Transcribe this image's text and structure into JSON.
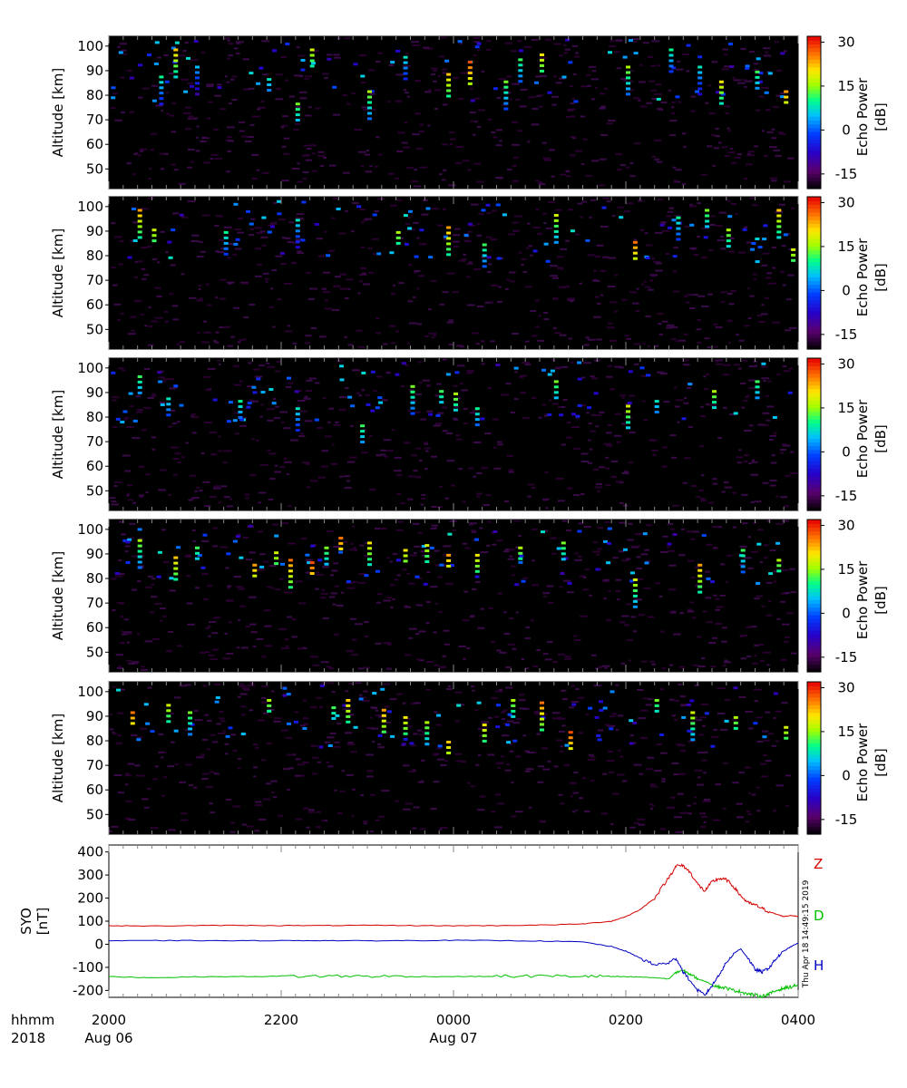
{
  "chart_data": [
    {
      "type": "heatmap",
      "ylabel": "Altitude [km]",
      "yticks": [
        50,
        60,
        70,
        80,
        90,
        100
      ],
      "ylim": [
        42,
        104
      ],
      "xlim": [
        "2018-08-06 20:00",
        "2018-08-07 04:00"
      ],
      "colorbar": {
        "label": "Echo Power [dB]",
        "ticks": [
          -15,
          0,
          15,
          30
        ],
        "range": [
          -20,
          32
        ]
      },
      "echoes": [
        [
          "20:45",
          99,
          22
        ],
        [
          "20:35",
          88,
          10
        ],
        [
          "21:00",
          92,
          5
        ],
        [
          "21:50",
          87,
          8
        ],
        [
          "22:10",
          77,
          14
        ],
        [
          "22:20",
          99,
          18
        ],
        [
          "23:00",
          82,
          16
        ],
        [
          "23:25",
          96,
          8
        ],
        [
          "23:55",
          89,
          22
        ],
        [
          "00:10",
          94,
          28
        ],
        [
          "00:35",
          86,
          14
        ],
        [
          "00:45",
          95,
          12
        ],
        [
          "01:00",
          97,
          20
        ],
        [
          "02:00",
          92,
          16
        ],
        [
          "02:30",
          99,
          10
        ],
        [
          "02:50",
          92,
          8
        ],
        [
          "03:05",
          86,
          20
        ],
        [
          "03:30",
          90,
          12
        ],
        [
          "03:50",
          82,
          24
        ]
      ]
    },
    {
      "type": "heatmap",
      "ylabel": "Altitude [km]",
      "yticks": [
        50,
        60,
        70,
        80,
        90,
        100
      ],
      "ylim": [
        42,
        104
      ],
      "xlim": [
        "2018-08-06 20:00",
        "2018-08-07 04:00"
      ],
      "colorbar": {
        "label": "Echo Power [dB]",
        "ticks": [
          -15,
          0,
          15,
          30
        ],
        "range": [
          -20,
          32
        ]
      },
      "echoes": [
        [
          "20:20",
          99,
          24
        ],
        [
          "20:30",
          91,
          18
        ],
        [
          "21:20",
          90,
          10
        ],
        [
          "22:10",
          95,
          8
        ],
        [
          "23:20",
          90,
          16
        ],
        [
          "23:55",
          92,
          24
        ],
        [
          "00:20",
          85,
          12
        ],
        [
          "01:10",
          97,
          18
        ],
        [
          "02:05",
          86,
          26
        ],
        [
          "02:35",
          96,
          10
        ],
        [
          "02:55",
          99,
          14
        ],
        [
          "03:10",
          91,
          16
        ],
        [
          "03:45",
          99,
          22
        ],
        [
          "03:55",
          83,
          18
        ]
      ]
    },
    {
      "type": "heatmap",
      "ylabel": "Altitude [km]",
      "yticks": [
        50,
        60,
        70,
        80,
        90,
        100
      ],
      "ylim": [
        42,
        104
      ],
      "xlim": [
        "2018-08-06 20:00",
        "2018-08-07 04:00"
      ],
      "colorbar": {
        "label": "Echo Power [dB]",
        "ticks": [
          -15,
          0,
          15,
          30
        ],
        "range": [
          -20,
          32
        ]
      },
      "echoes": [
        [
          "20:20",
          97,
          12
        ],
        [
          "20:40",
          88,
          8
        ],
        [
          "21:30",
          87,
          10
        ],
        [
          "22:10",
          84,
          8
        ],
        [
          "22:55",
          77,
          12
        ],
        [
          "23:30",
          93,
          14
        ],
        [
          "23:50",
          91,
          12
        ],
        [
          "00:00",
          90,
          16
        ],
        [
          "00:15",
          84,
          10
        ],
        [
          "01:10",
          95,
          14
        ],
        [
          "02:00",
          85,
          18
        ],
        [
          "02:20",
          87,
          8
        ],
        [
          "03:00",
          91,
          16
        ],
        [
          "03:30",
          95,
          12
        ]
      ]
    },
    {
      "type": "heatmap",
      "ylabel": "Altitude [km]",
      "yticks": [
        50,
        60,
        70,
        80,
        90,
        100
      ],
      "ylim": [
        42,
        104
      ],
      "xlim": [
        "2018-08-06 20:00",
        "2018-08-07 04:00"
      ],
      "colorbar": {
        "label": "Echo Power [dB]",
        "ticks": [
          -15,
          0,
          15,
          30
        ],
        "range": [
          -20,
          32
        ]
      },
      "echoes": [
        [
          "20:20",
          96,
          16
        ],
        [
          "20:45",
          89,
          22
        ],
        [
          "21:00",
          93,
          12
        ],
        [
          "21:40",
          86,
          24
        ],
        [
          "21:55",
          91,
          18
        ],
        [
          "22:05",
          88,
          26
        ],
        [
          "22:20",
          87,
          28
        ],
        [
          "22:30",
          93,
          14
        ],
        [
          "22:40",
          97,
          26
        ],
        [
          "23:00",
          95,
          20
        ],
        [
          "23:25",
          92,
          20
        ],
        [
          "23:40",
          94,
          18
        ],
        [
          "23:55",
          90,
          24
        ],
        [
          "00:15",
          90,
          20
        ],
        [
          "00:45",
          93,
          16
        ],
        [
          "01:15",
          95,
          14
        ],
        [
          "02:05",
          80,
          18
        ],
        [
          "02:50",
          86,
          24
        ],
        [
          "03:20",
          92,
          12
        ],
        [
          "03:45",
          88,
          16
        ]
      ]
    },
    {
      "type": "heatmap",
      "ylabel": "Altitude [km]",
      "yticks": [
        50,
        60,
        70,
        80,
        90,
        100
      ],
      "ylim": [
        42,
        104
      ],
      "xlim": [
        "2018-08-06 20:00",
        "2018-08-07 04:00"
      ],
      "colorbar": {
        "label": "Echo Power [dB]",
        "ticks": [
          -15,
          0,
          15,
          30
        ],
        "range": [
          -20,
          32
        ]
      },
      "echoes": [
        [
          "20:15",
          92,
          26
        ],
        [
          "20:40",
          95,
          18
        ],
        [
          "20:55",
          92,
          14
        ],
        [
          "21:50",
          97,
          16
        ],
        [
          "22:35",
          94,
          12
        ],
        [
          "22:45",
          97,
          22
        ],
        [
          "23:10",
          93,
          24
        ],
        [
          "23:25",
          90,
          20
        ],
        [
          "23:40",
          88,
          16
        ],
        [
          "23:55",
          80,
          22
        ],
        [
          "00:20",
          87,
          20
        ],
        [
          "00:40",
          97,
          16
        ],
        [
          "01:00",
          96,
          26
        ],
        [
          "01:20",
          84,
          28
        ],
        [
          "02:20",
          97,
          14
        ],
        [
          "02:45",
          92,
          18
        ],
        [
          "03:15",
          90,
          16
        ],
        [
          "03:50",
          86,
          18
        ]
      ]
    },
    {
      "type": "line",
      "ylabel": "SYO\n[nT]",
      "yticks": [
        -200,
        -100,
        0,
        100,
        200,
        300,
        400
      ],
      "ylim": [
        -230,
        430
      ],
      "xlim": [
        "2018-08-06 20:00",
        "2018-08-07 04:00"
      ],
      "x": [
        "20:00",
        "20:30",
        "21:00",
        "21:30",
        "22:00",
        "22:30",
        "23:00",
        "23:30",
        "00:00",
        "00:30",
        "01:00",
        "01:30",
        "01:50",
        "02:00",
        "02:10",
        "02:20",
        "02:30",
        "02:35",
        "02:40",
        "02:45",
        "02:50",
        "02:55",
        "03:00",
        "03:05",
        "03:10",
        "03:15",
        "03:20",
        "03:25",
        "03:30",
        "03:35",
        "03:40",
        "03:45",
        "03:50",
        "03:55",
        "04:00"
      ],
      "series": [
        {
          "name": "Z",
          "color": "#d40000",
          "values": [
            80,
            79,
            81,
            82,
            81,
            81,
            82,
            81,
            80,
            81,
            83,
            88,
            100,
            120,
            150,
            200,
            290,
            340,
            340,
            310,
            260,
            230,
            270,
            285,
            280,
            250,
            210,
            180,
            170,
            155,
            140,
            130,
            120,
            125,
            120
          ]
        },
        {
          "name": "D",
          "color": "#00c000",
          "values": [
            -140,
            -145,
            -141,
            -140,
            -139,
            -138,
            -138,
            -140,
            -140,
            -139,
            -138,
            -138,
            -140,
            -141,
            -142,
            -145,
            -150,
            -120,
            -115,
            -130,
            -150,
            -160,
            -175,
            -185,
            -190,
            -200,
            -205,
            -215,
            -220,
            -225,
            -215,
            -200,
            -190,
            -185,
            -175
          ]
        },
        {
          "name": "H",
          "color": "#0000c0",
          "values": [
            15,
            16,
            16,
            15,
            16,
            16,
            15,
            16,
            17,
            16,
            14,
            10,
            -10,
            -30,
            -60,
            -90,
            -80,
            -60,
            -120,
            -160,
            -200,
            -220,
            -180,
            -130,
            -80,
            -40,
            -20,
            -60,
            -110,
            -120,
            -100,
            -60,
            -30,
            -10,
            5
          ]
        }
      ]
    }
  ],
  "xaxis": {
    "row1_label": "hhmm",
    "row2_label": "2018",
    "ticks": [
      {
        "time": "20:00",
        "label": "2000",
        "date": "Aug 06"
      },
      {
        "time": "22:00",
        "label": "2200",
        "date": ""
      },
      {
        "time": "00:00",
        "label": "0000",
        "date": "Aug 07"
      },
      {
        "time": "02:00",
        "label": "0200",
        "date": ""
      },
      {
        "time": "04:00",
        "label": "0400",
        "date": ""
      }
    ]
  },
  "timestamp": "Thu Apr 18 14:49:15 2019"
}
